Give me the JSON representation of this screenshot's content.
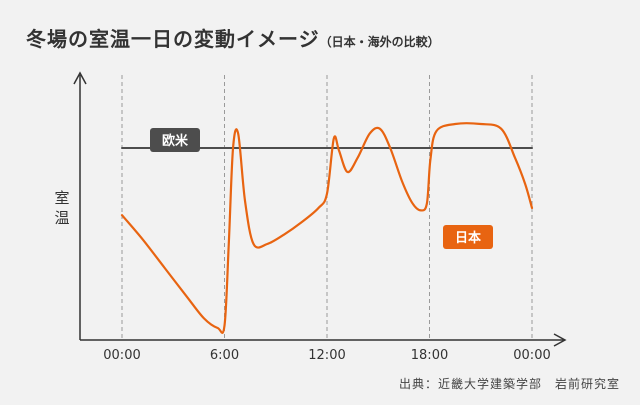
{
  "title": {
    "main": "冬場の室温一日の変動イメージ",
    "sub": "（日本・海外の比較）"
  },
  "source": "出典：近畿大学建築学部　岩前研究室",
  "chart_data": {
    "type": "line",
    "ylabel": "室温",
    "categories": [
      "00:00",
      "6:00",
      "12:00",
      "18:00",
      "00:00"
    ],
    "x_hours": [
      0,
      6,
      12,
      18,
      24
    ],
    "series": [
      {
        "name": "欧米",
        "color": "#4d4d4d",
        "style": "flat",
        "points": [
          [
            0,
            80
          ],
          [
            24,
            80
          ]
        ]
      },
      {
        "name": "日本",
        "color": "#e86411",
        "style": "curve",
        "points": [
          [
            0,
            52
          ],
          [
            1.2,
            42
          ],
          [
            2.5,
            30
          ],
          [
            3.8,
            18
          ],
          [
            4.8,
            9
          ],
          [
            5.6,
            5
          ],
          [
            6.0,
            6
          ],
          [
            6.25,
            40
          ],
          [
            6.5,
            80
          ],
          [
            6.8,
            86
          ],
          [
            7.2,
            58
          ],
          [
            7.7,
            40
          ],
          [
            8.5,
            40
          ],
          [
            9.5,
            44
          ],
          [
            10.5,
            49
          ],
          [
            11.5,
            55
          ],
          [
            12.0,
            61
          ],
          [
            12.4,
            84
          ],
          [
            12.7,
            79
          ],
          [
            13.2,
            70
          ],
          [
            13.8,
            76
          ],
          [
            14.5,
            86
          ],
          [
            15.1,
            88
          ],
          [
            15.7,
            80
          ],
          [
            16.4,
            66
          ],
          [
            17.0,
            57
          ],
          [
            17.5,
            54
          ],
          [
            17.85,
            57
          ],
          [
            18.05,
            75
          ],
          [
            18.4,
            87
          ],
          [
            19.5,
            90
          ],
          [
            21.0,
            90
          ],
          [
            22.2,
            88
          ],
          [
            23.0,
            76
          ],
          [
            23.6,
            65
          ],
          [
            24.0,
            55
          ]
        ]
      }
    ],
    "ylim": [
      0,
      100
    ],
    "grid": "vertical dashed lines at each tick",
    "legend": "inline labels: 欧米 above the gray line on the left, 日本 right of the orange line near 19:00"
  }
}
